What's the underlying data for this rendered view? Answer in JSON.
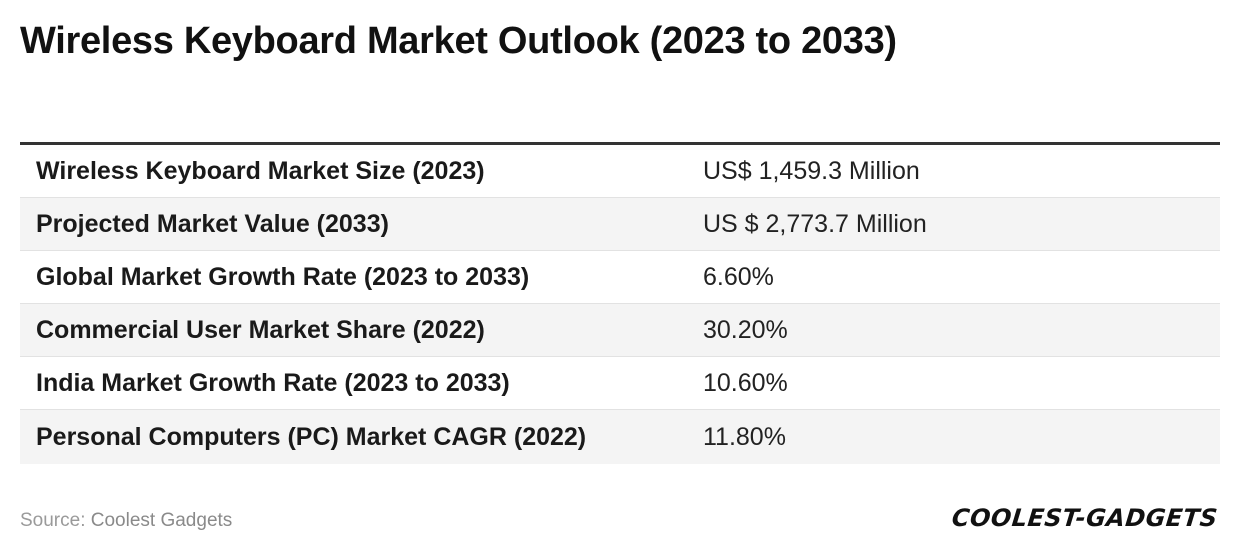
{
  "title": "Wireless Keyboard Market Outlook (2023 to 2033)",
  "table": {
    "rows": [
      {
        "label": "Wireless Keyboard Market Size (2023)",
        "value": "US$ 1,459.3 Million"
      },
      {
        "label": "Projected Market Value (2033)",
        "value": "US $ 2,773.7 Million"
      },
      {
        "label": "Global Market Growth Rate (2023 to 2033)",
        "value": "6.60%"
      },
      {
        "label": "Commercial User Market Share (2022)",
        "value": "30.20%"
      },
      {
        "label": "India Market Growth Rate (2023 to 2033)",
        "value": "10.60%"
      },
      {
        "label": "Personal Computers (PC) Market CAGR (2022)",
        "value": "11.80%"
      }
    ]
  },
  "footer": {
    "source_label": "Source:",
    "source_value": "Coolest Gadgets",
    "brand": "COOLEST-GADGETS"
  },
  "colors": {
    "header_rule": "#333333",
    "row_alt": "#f4f4f4",
    "source_text": "#8a8a8a"
  }
}
